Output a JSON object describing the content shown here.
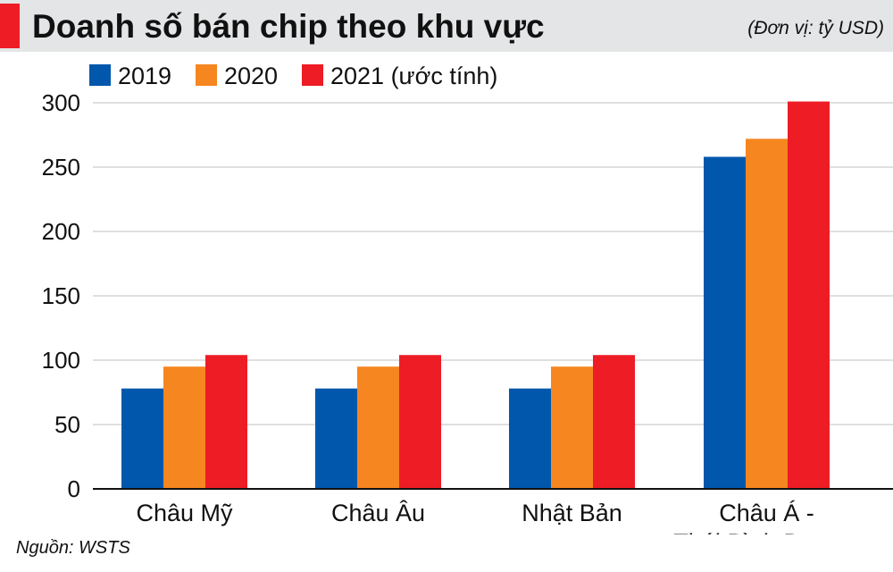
{
  "header": {
    "title": "Doanh số bán chip theo khu vực",
    "unit": "(Đơn vị: tỷ USD)"
  },
  "source": "Nguồn: WSTS",
  "colors": {
    "series_2019": "#0057ab",
    "series_2020": "#f6861f",
    "series_2021": "#ee1c25",
    "accent": "#ee1c25",
    "titlebar": "#e4e5e6",
    "gridline": "#bfbfbf"
  },
  "chart_data": {
    "type": "bar",
    "title": "Doanh số bán chip theo khu vực",
    "ylabel": "",
    "xlabel": "",
    "ylim": [
      0,
      300
    ],
    "yticks": [
      0,
      50,
      100,
      150,
      200,
      250,
      300
    ],
    "grid": true,
    "legend": "top-left",
    "categories": [
      [
        "Châu Mỹ"
      ],
      [
        "Châu Âu"
      ],
      [
        "Nhật Bản"
      ],
      [
        "Châu Á -",
        "Thái Bình Dương"
      ]
    ],
    "series": [
      {
        "name": "2019",
        "color": "#0057ab",
        "values": [
          78,
          78,
          78,
          258
        ]
      },
      {
        "name": "2020",
        "color": "#f6861f",
        "values": [
          95,
          95,
          95,
          272
        ]
      },
      {
        "name": "2021 (ước tính)",
        "color": "#ee1c25",
        "values": [
          104,
          104,
          104,
          301
        ]
      }
    ]
  }
}
